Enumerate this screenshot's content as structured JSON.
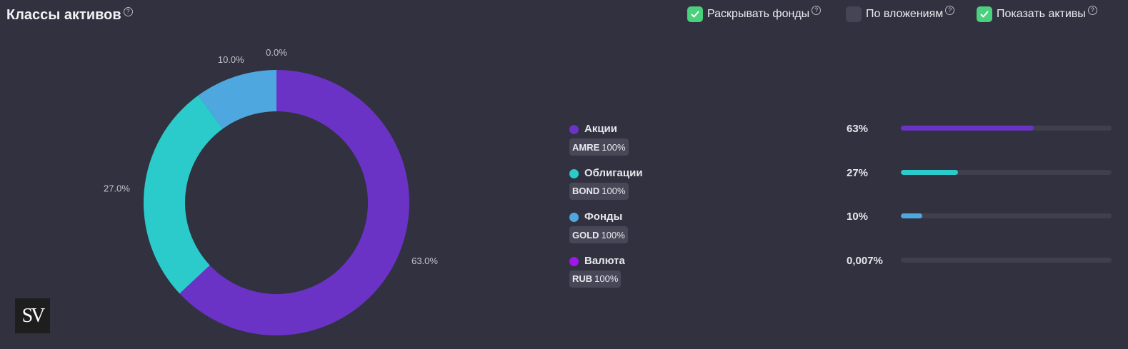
{
  "header": {
    "title": "Классы активов",
    "help": "?"
  },
  "options": [
    {
      "label": "Раскрывать фонды",
      "checked": true,
      "help": "?"
    },
    {
      "label": "По вложениям",
      "checked": false,
      "help": "?"
    },
    {
      "label": "Показать активы",
      "checked": true,
      "help": "?"
    }
  ],
  "chart_data": {
    "type": "pie",
    "donut": true,
    "slices": [
      {
        "name": "Акции",
        "value": 63.0,
        "label": "63.0%",
        "color": "#6a32c5"
      },
      {
        "name": "Облигации",
        "value": 27.0,
        "label": "27.0%",
        "color": "#2bcbcb"
      },
      {
        "name": "Фонды",
        "value": 10.0,
        "label": "10.0%",
        "color": "#4ea8df"
      },
      {
        "name": "Валюта",
        "value": 0.0,
        "label": "0.0%",
        "color": "#a116ea"
      }
    ]
  },
  "legend": [
    {
      "name": "Акции",
      "ticker": "AMRE",
      "share": "100%",
      "pct_text": "63%",
      "fraction": 0.63,
      "color": "#6a32c5"
    },
    {
      "name": "Облигации",
      "ticker": "BOND",
      "share": "100%",
      "pct_text": "27%",
      "fraction": 0.27,
      "color": "#2bcbcb"
    },
    {
      "name": "Фонды",
      "ticker": "GOLD",
      "share": "100%",
      "pct_text": "10%",
      "fraction": 0.1,
      "color": "#4ea8df"
    },
    {
      "name": "Валюта",
      "ticker": "RUB",
      "share": "100%",
      "pct_text": "0,007%",
      "fraction": 7e-05,
      "color": "#a116ea"
    }
  ],
  "logo": {
    "text": "SV"
  },
  "colors": {
    "background": "#31313f",
    "check_on": "#49d17d",
    "check_off": "#454556"
  }
}
